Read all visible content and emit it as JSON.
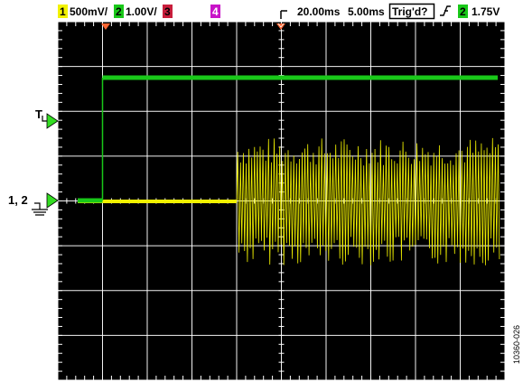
{
  "header": {
    "ch1": {
      "num": "1",
      "scale": "500mV/",
      "color": "#f2f200",
      "text_color": "#000000"
    },
    "ch2": {
      "num": "2",
      "scale": "1.00V/",
      "color": "#19c819",
      "text_color": "#000000"
    },
    "ch3": {
      "num": "3",
      "color": "#c81e3c",
      "text_color": "#000000"
    },
    "ch4": {
      "num": "4",
      "color": "#c814c8",
      "text_color": "#ffffff"
    },
    "timebase_1": "20.00ms",
    "timebase_2": "5.00ms",
    "trig_status": "Trig'd?",
    "trig_source": "2",
    "trig_level": "1.75V"
  },
  "markers": {
    "trigger_label": "T",
    "channel_label": "1, 2"
  },
  "figure_id": "10360-026",
  "colors": {
    "screen_bg": "#000000",
    "grid": "#ffffff",
    "ch1_trace": "#f2f200",
    "ch2_trace": "#19c819",
    "marker_fill": "#33dd22",
    "top_marker": "#ff6633"
  },
  "traces": {
    "ch2_step_fraction_x": 0.1,
    "ch1_burst_start_fraction_x": 0.4
  }
}
